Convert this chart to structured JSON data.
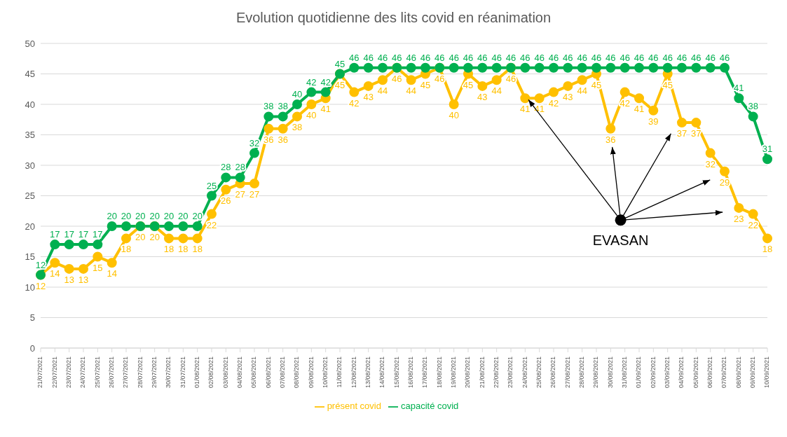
{
  "chart_data": {
    "type": "line",
    "title": "Evolution quotidienne des lits covid en réanimation",
    "categories": [
      "21/07/2021",
      "22/07/2021",
      "23/07/2021",
      "24/07/2021",
      "25/07/2021",
      "26/07/2021",
      "27/07/2021",
      "28/07/2021",
      "29/07/2021",
      "30/07/2021",
      "31/07/2021",
      "01/08/2021",
      "02/08/2021",
      "03/08/2021",
      "04/08/2021",
      "05/08/2021",
      "06/08/2021",
      "07/08/2021",
      "08/08/2021",
      "09/08/2021",
      "10/08/2021",
      "11/08/2021",
      "12/08/2021",
      "13/08/2021",
      "14/08/2021",
      "15/08/2021",
      "16/08/2021",
      "17/08/2021",
      "18/08/2021",
      "19/08/2021",
      "20/08/2021",
      "21/08/2021",
      "22/08/2021",
      "23/08/2021",
      "24/08/2021",
      "25/08/2021",
      "26/08/2021",
      "27/08/2021",
      "28/08/2021",
      "29/08/2021",
      "30/08/2021",
      "31/08/2021",
      "01/09/2021",
      "02/09/2021",
      "03/09/2021",
      "04/09/2021",
      "05/09/2021",
      "06/09/2021",
      "07/09/2021",
      "08/09/2021",
      "09/09/2021",
      "10/09/2021"
    ],
    "series": [
      {
        "name": "présent covid",
        "color": "#ffc000",
        "values": [
          12,
          14,
          13,
          13,
          15,
          14,
          18,
          20,
          20,
          18,
          18,
          18,
          22,
          26,
          27,
          27,
          36,
          36,
          38,
          40,
          41,
          45,
          42,
          43,
          44,
          46,
          44,
          45,
          46,
          40,
          45,
          43,
          44,
          46,
          41,
          41,
          42,
          43,
          44,
          45,
          36,
          42,
          41,
          39,
          45,
          37,
          37,
          32,
          29,
          23,
          22,
          18
        ]
      },
      {
        "name": "capacité covid",
        "color": "#00b050",
        "values": [
          12,
          17,
          17,
          17,
          17,
          20,
          20,
          20,
          20,
          20,
          20,
          20,
          25,
          28,
          28,
          32,
          38,
          38,
          40,
          42,
          42,
          45,
          46,
          46,
          46,
          46,
          46,
          46,
          46,
          46,
          46,
          46,
          46,
          46,
          46,
          46,
          46,
          46,
          46,
          46,
          46,
          46,
          46,
          46,
          46,
          46,
          46,
          46,
          46,
          41,
          38,
          31
        ]
      }
    ],
    "ylim": [
      0,
      50
    ],
    "yticks": [
      0,
      5,
      10,
      15,
      20,
      25,
      30,
      35,
      40,
      45,
      50
    ],
    "grid": "y",
    "legend": "bottom",
    "marker": "circle",
    "line_style": "solid",
    "data_labels": true,
    "annotations": [
      {
        "text": "EVASAN",
        "x": "24/08/2021",
        "y": 41
      }
    ]
  }
}
